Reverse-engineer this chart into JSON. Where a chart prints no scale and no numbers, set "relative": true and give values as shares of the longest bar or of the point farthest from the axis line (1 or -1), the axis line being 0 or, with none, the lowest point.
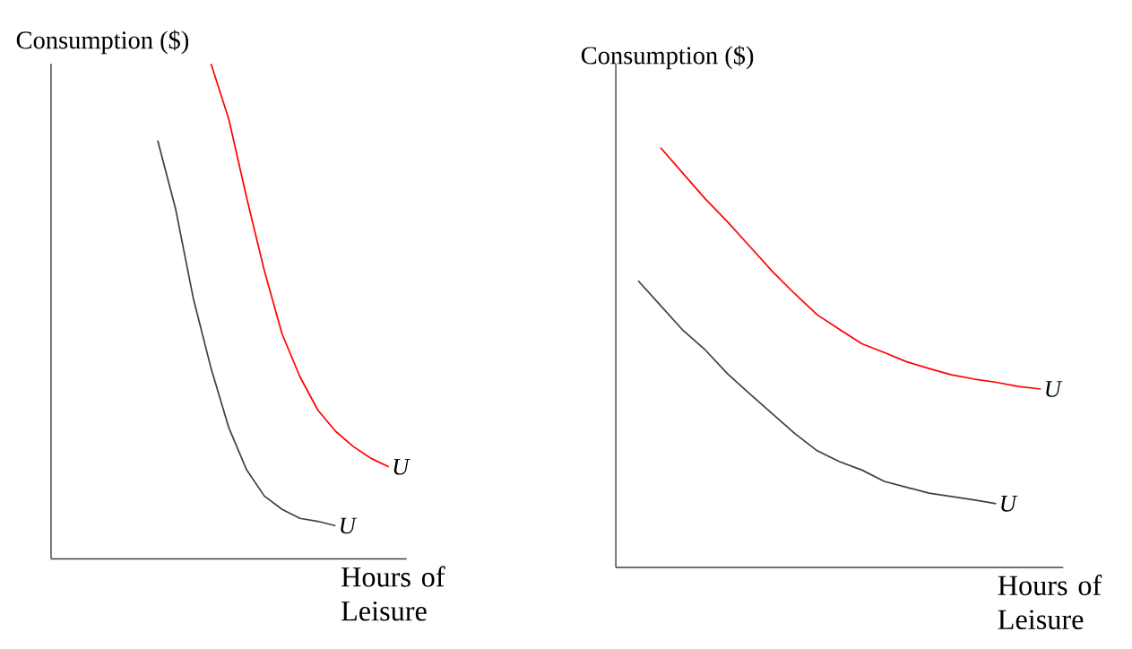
{
  "chart_data": [
    {
      "type": "line",
      "relative": true,
      "ylabel": "Consumption ($)",
      "xlabel": "Hours of Leisure",
      "categories": [
        null,
        null,
        null,
        null,
        null,
        null,
        null,
        null,
        null,
        null,
        null,
        null,
        null,
        null,
        null,
        null,
        null,
        null,
        null,
        null,
        null
      ],
      "series": [
        {
          "name": "U",
          "color": "#ff0000",
          "values": [
            null,
            null,
            null,
            null,
            null,
            null,
            null,
            null,
            null,
            1.0,
            0.888,
            0.73,
            0.582,
            0.454,
            0.368,
            0.301,
            0.258,
            0.227,
            0.203,
            0.186,
            null
          ]
        },
        {
          "name": "U",
          "color": "#404040",
          "values": [
            null,
            null,
            null,
            null,
            null,
            null,
            0.845,
            0.708,
            0.527,
            0.385,
            0.265,
            0.18,
            0.127,
            0.1,
            0.082,
            0.076,
            0.067,
            null,
            null,
            null,
            null
          ]
        }
      ]
    },
    {
      "type": "line",
      "relative": true,
      "ylabel": "Consumption ($)",
      "xlabel": "Hours of Leisure",
      "categories": [
        null,
        null,
        null,
        null,
        null,
        null,
        null,
        null,
        null,
        null,
        null,
        null,
        null,
        null,
        null,
        null,
        null,
        null,
        null,
        null,
        null
      ],
      "series": [
        {
          "name": "U",
          "color": "#ff0000",
          "values": [
            null,
            null,
            1.0,
            0.939,
            0.878,
            0.823,
            0.764,
            0.705,
            0.652,
            0.602,
            0.567,
            0.533,
            0.512,
            0.49,
            0.474,
            0.459,
            0.449,
            0.441,
            0.431,
            0.425,
            null
          ]
        },
        {
          "name": "U",
          "color": "#404040",
          "values": [
            null,
            0.683,
            0.624,
            0.565,
            0.518,
            0.461,
            0.413,
            0.366,
            0.319,
            0.278,
            0.252,
            0.232,
            0.205,
            0.191,
            0.177,
            0.169,
            0.161,
            0.152,
            null,
            null,
            null
          ]
        }
      ]
    }
  ]
}
